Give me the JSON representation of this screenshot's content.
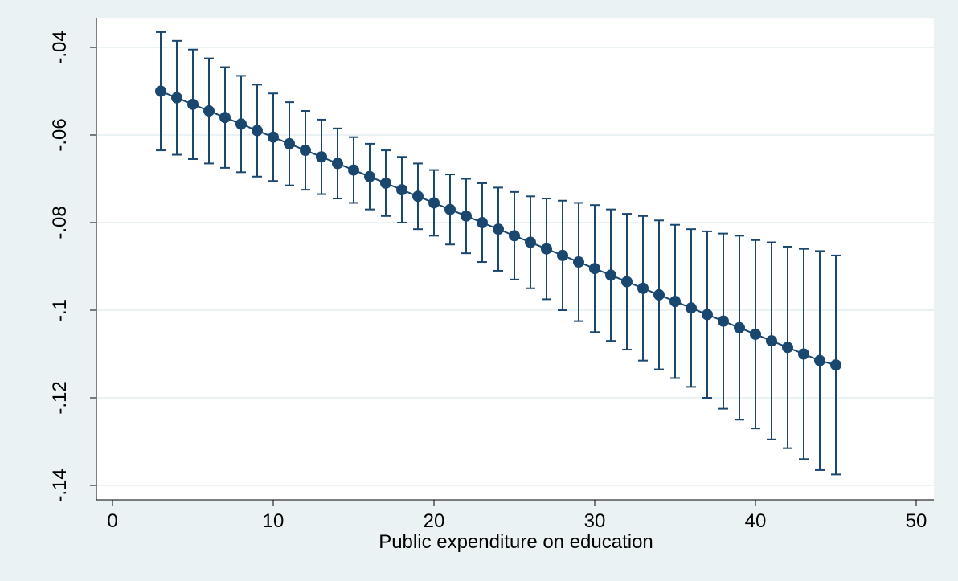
{
  "chart_data": {
    "type": "scatter",
    "title": "",
    "xlabel": "Public expenditure on education",
    "ylabel": "",
    "xlim": [
      0,
      50
    ],
    "ylim": [
      -0.14,
      -0.04
    ],
    "x_ticks": [
      0,
      10,
      20,
      30,
      40,
      50
    ],
    "x_tick_labels": [
      "0",
      "10",
      "20",
      "30",
      "40",
      "50"
    ],
    "y_ticks": [
      -0.04,
      -0.06,
      -0.08,
      -0.1,
      -0.12,
      -0.14
    ],
    "y_tick_labels": [
      "-.04",
      "-.06",
      "-.08",
      "-.1",
      "-.12",
      "-.14"
    ],
    "grid": true,
    "legend": "none",
    "series": [
      {
        "x": [
          3,
          4,
          5,
          6,
          7,
          8,
          9,
          10,
          11,
          12,
          13,
          14,
          15,
          16,
          17,
          18,
          19,
          20,
          21,
          22,
          23,
          24,
          25,
          26,
          27,
          28,
          29,
          30,
          31,
          32,
          33,
          34,
          35,
          36,
          37,
          38,
          39,
          40,
          41,
          42,
          43,
          44,
          45
        ],
        "y": [
          -0.05,
          -0.0515,
          -0.053,
          -0.0545,
          -0.056,
          -0.0575,
          -0.059,
          -0.0605,
          -0.062,
          -0.0635,
          -0.065,
          -0.0665,
          -0.068,
          -0.0695,
          -0.071,
          -0.0725,
          -0.074,
          -0.0755,
          -0.077,
          -0.0785,
          -0.08,
          -0.0815,
          -0.083,
          -0.0845,
          -0.086,
          -0.0875,
          -0.089,
          -0.0905,
          -0.092,
          -0.0935,
          -0.095,
          -0.0965,
          -0.098,
          -0.0995,
          -0.101,
          -0.1025,
          -0.104,
          -0.1055,
          -0.107,
          -0.1085,
          -0.11,
          -0.1115,
          -0.1125
        ],
        "upper": [
          -0.0365,
          -0.0385,
          -0.0405,
          -0.0425,
          -0.0445,
          -0.0465,
          -0.0485,
          -0.0505,
          -0.0525,
          -0.0545,
          -0.0565,
          -0.0585,
          -0.0605,
          -0.062,
          -0.0635,
          -0.065,
          -0.0665,
          -0.068,
          -0.069,
          -0.07,
          -0.071,
          -0.072,
          -0.073,
          -0.074,
          -0.0745,
          -0.075,
          -0.0755,
          -0.076,
          -0.077,
          -0.078,
          -0.0785,
          -0.0795,
          -0.0805,
          -0.0815,
          -0.082,
          -0.0825,
          -0.083,
          -0.084,
          -0.0845,
          -0.0855,
          -0.086,
          -0.0865,
          -0.0875
        ],
        "lower": [
          -0.0635,
          -0.0645,
          -0.0655,
          -0.0665,
          -0.0675,
          -0.0685,
          -0.0695,
          -0.0705,
          -0.0715,
          -0.0725,
          -0.0735,
          -0.0745,
          -0.0755,
          -0.077,
          -0.0785,
          -0.08,
          -0.0815,
          -0.083,
          -0.085,
          -0.087,
          -0.089,
          -0.091,
          -0.093,
          -0.095,
          -0.0975,
          -0.1,
          -0.1025,
          -0.105,
          -0.107,
          -0.109,
          -0.1115,
          -0.1135,
          -0.1155,
          -0.1175,
          -0.12,
          -0.1225,
          -0.125,
          -0.127,
          -0.1295,
          -0.1315,
          -0.134,
          -0.1365,
          -0.1375
        ]
      }
    ]
  },
  "colors": {
    "outer_background": "#eaf2f3",
    "plot_background": "#ffffff",
    "grid": "#eaf2f3",
    "series": "#1a476f"
  }
}
